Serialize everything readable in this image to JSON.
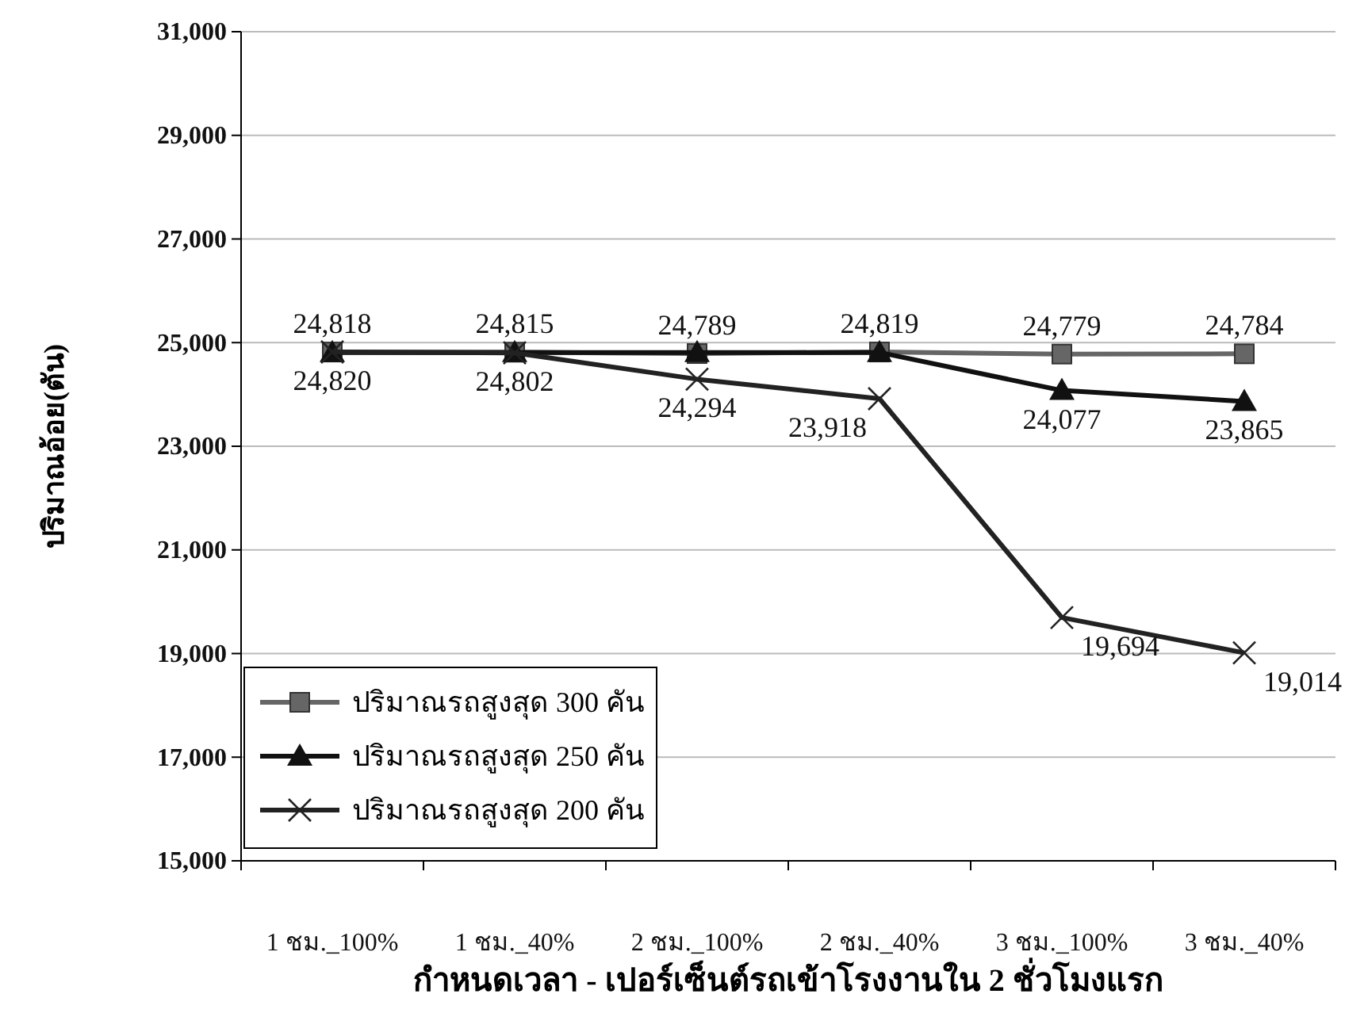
{
  "chart_data": {
    "type": "line",
    "xlabel": "กำหนดเวลา - เปอร์เซ็นต์รถเข้าโรงงานใน 2 ชั่วโมงแรก",
    "ylabel": "ปริมาณอ้อย(ตัน)",
    "categories": [
      "1 ชม._100%",
      "1 ชม._40%",
      "2 ชม._100%",
      "2 ชม._40%",
      "3 ชม._100%",
      "3 ชม._40%"
    ],
    "ylim": [
      15000,
      31000
    ],
    "yticks": [
      {
        "value": 15000,
        "label": "15,000"
      },
      {
        "value": 17000,
        "label": "17,000"
      },
      {
        "value": 19000,
        "label": "19,000"
      },
      {
        "value": 21000,
        "label": "21,000"
      },
      {
        "value": 23000,
        "label": "23,000"
      },
      {
        "value": 25000,
        "label": "25,000"
      },
      {
        "value": 27000,
        "label": "27,000"
      },
      {
        "value": 29000,
        "label": "29,000"
      },
      {
        "value": 31000,
        "label": "31,000"
      }
    ],
    "grid": "y",
    "legend": "bottom left",
    "series": [
      {
        "name": "ปริมาณรถสูงสุด 300 คัน",
        "color": "#666666",
        "marker": "square",
        "values": [
          24818,
          24815,
          24789,
          24819,
          24779,
          24784
        ],
        "value_labels": [
          "24,818",
          "24,815",
          "24,789",
          "24,819",
          "24,779",
          "24,784"
        ]
      },
      {
        "name": "ปริมาณรถสูงสุด 250 คัน",
        "color": "#111111",
        "marker": "triangle",
        "values": [
          24810,
          24810,
          24810,
          24810,
          24077,
          23865
        ],
        "value_labels": [
          null,
          null,
          null,
          null,
          "24,077",
          "23,865"
        ]
      },
      {
        "name": "ปริมาณรถสูงสุด 200 คัน",
        "color": "#222222",
        "marker": "cross",
        "values": [
          24820,
          24802,
          24294,
          23918,
          19694,
          19014
        ],
        "value_labels": [
          "24,820",
          "24,802",
          "24,294",
          "23,918",
          "19,694",
          "19,014"
        ]
      }
    ]
  }
}
